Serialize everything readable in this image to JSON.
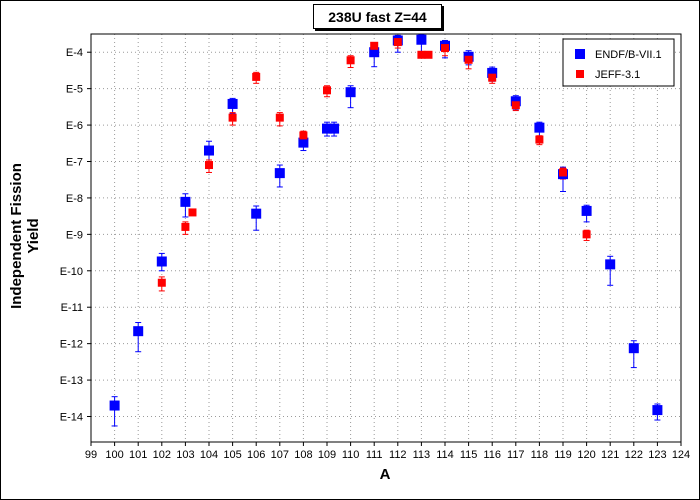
{
  "chart_data": {
    "type": "scatter",
    "title": "238U fast Z=44",
    "xlabel": "A",
    "ylabel": "Independent Fission Yield",
    "xlim": [
      99,
      124
    ],
    "ylim_log10": [
      -14.7,
      -3.5
    ],
    "y_scale": "log",
    "grid": true,
    "legend_position": "top-right",
    "x_ticks": [
      "99",
      "100",
      "101",
      "102",
      "103",
      "104",
      "105",
      "106",
      "107",
      "108",
      "109",
      "110",
      "111",
      "112",
      "113",
      "114",
      "115",
      "116",
      "117",
      "118",
      "119",
      "120",
      "121",
      "122",
      "123",
      "124"
    ],
    "y_ticks": [
      {
        "label": "E-4",
        "value": -4
      },
      {
        "label": "E-5",
        "value": -5
      },
      {
        "label": "E-6",
        "value": -6
      },
      {
        "label": "E-7",
        "value": -7
      },
      {
        "label": "E-8",
        "value": -8
      },
      {
        "label": "E-9",
        "value": -9
      },
      {
        "label": "E-10",
        "value": -10
      },
      {
        "label": "E-11",
        "value": -11
      },
      {
        "label": "E-12",
        "value": -12
      },
      {
        "label": "E-13",
        "value": -13
      },
      {
        "label": "E-14",
        "value": -14
      }
    ],
    "series": [
      {
        "name": "ENDF/B-VII.1",
        "color": "#0000ff",
        "marker": "square",
        "points": [
          {
            "x": 100,
            "y": 2e-14,
            "lo": 5.5e-15,
            "hi": 3.5e-14
          },
          {
            "x": 101,
            "y": 2.2e-12,
            "lo": 6e-13,
            "hi": 3.8e-12
          },
          {
            "x": 102,
            "y": 1.8e-10,
            "lo": 1e-10,
            "hi": 3e-10
          },
          {
            "x": 103,
            "y": 7.8e-09,
            "lo": 3e-09,
            "hi": 1.3e-08
          },
          {
            "x": 104,
            "y": 2e-07,
            "lo": 1.1e-07,
            "hi": 3.6e-07
          },
          {
            "x": 105,
            "y": 3.8e-06,
            "lo": 2.1e-06,
            "hi": 5.4e-06
          },
          {
            "x": 106,
            "y": 3.7e-09,
            "lo": 1.3e-09,
            "hi": 6e-09
          },
          {
            "x": 107,
            "y": 4.8e-08,
            "lo": 2e-08,
            "hi": 8e-08
          },
          {
            "x": 108,
            "y": 3.3e-07,
            "lo": 2e-07,
            "hi": 5.3e-07
          },
          {
            "x": 109,
            "y": 8e-07,
            "lo": 5e-07,
            "hi": 1.2e-06
          },
          {
            "x": 109.3,
            "y": 8e-07,
            "lo": 5e-07,
            "hi": 1.2e-06
          },
          {
            "x": 110,
            "y": 8e-06,
            "lo": 3e-06,
            "hi": 1.2e-05
          },
          {
            "x": 111,
            "y": 0.0001,
            "lo": 4e-05,
            "hi": 0.00014
          },
          {
            "x": 112,
            "y": 0.00021,
            "lo": 0.0001,
            "hi": 0.00029
          },
          {
            "x": 113,
            "y": 0.00022,
            "lo": 0.0001,
            "hi": 0.0003
          },
          {
            "x": 114,
            "y": 0.00015,
            "lo": 7e-05,
            "hi": 0.00021
          },
          {
            "x": 115,
            "y": 7.5e-05,
            "lo": 4.5e-05,
            "hi": 0.00011
          },
          {
            "x": 116,
            "y": 2.7e-05,
            "lo": 1.6e-05,
            "hi": 3.9e-05
          },
          {
            "x": 117,
            "y": 4.5e-06,
            "lo": 2.6e-06,
            "hi": 6.4e-06
          },
          {
            "x": 118,
            "y": 8.5e-07,
            "lo": 4.2e-07,
            "hi": 1.2e-06
          },
          {
            "x": 119,
            "y": 4.5e-08,
            "lo": 1.5e-08,
            "hi": 7e-08
          },
          {
            "x": 120,
            "y": 4.4e-09,
            "lo": 2.2e-09,
            "hi": 6.3e-09
          },
          {
            "x": 121,
            "y": 1.5e-10,
            "lo": 4e-11,
            "hi": 2.5e-10
          },
          {
            "x": 122,
            "y": 7.5e-13,
            "lo": 2.2e-13,
            "hi": 1.2e-12
          },
          {
            "x": 123,
            "y": 1.5e-14,
            "lo": 8e-15,
            "hi": 2.2e-14
          }
        ]
      },
      {
        "name": "JEFF-3.1",
        "color": "#ff0000",
        "marker": "square",
        "points": [
          {
            "x": 102,
            "y": 4.7e-11,
            "lo": 2.8e-11,
            "hi": 6.8e-11
          },
          {
            "x": 103,
            "y": 1.6e-09,
            "lo": 1e-09,
            "hi": 2.2e-09
          },
          {
            "x": 103.3,
            "y": 4e-09
          },
          {
            "x": 104,
            "y": 8e-08,
            "lo": 5e-08,
            "hi": 1.1e-07
          },
          {
            "x": 105,
            "y": 1.6e-06,
            "lo": 1e-06,
            "hi": 2.2e-06
          },
          {
            "x": 106,
            "y": 2.1e-05,
            "lo": 1.4e-05,
            "hi": 2.8e-05
          },
          {
            "x": 107,
            "y": 1.6e-06,
            "lo": 9.5e-07,
            "hi": 2.2e-06
          },
          {
            "x": 108,
            "y": 5.2e-07,
            "lo": 3.6e-07,
            "hi": 6.8e-07
          },
          {
            "x": 109,
            "y": 9e-06,
            "lo": 6e-06,
            "hi": 1.2e-05
          },
          {
            "x": 110,
            "y": 6e-05,
            "lo": 3.8e-05,
            "hi": 8e-05
          },
          {
            "x": 111,
            "y": 0.00015,
            "lo": 0.00011,
            "hi": 0.00018
          },
          {
            "x": 112,
            "y": 0.00019,
            "lo": 0.00013,
            "hi": 0.00025
          },
          {
            "x": 113,
            "y": 8.5e-05
          },
          {
            "x": 113.3,
            "y": 8.5e-05
          },
          {
            "x": 114,
            "y": 0.00013,
            "lo": 8e-05,
            "hi": 0.00017
          },
          {
            "x": 115,
            "y": 6.2e-05,
            "lo": 3.5e-05,
            "hi": 8.5e-05
          },
          {
            "x": 116,
            "y": 2e-05,
            "lo": 1.4e-05,
            "hi": 2.6e-05
          },
          {
            "x": 117,
            "y": 3.5e-06,
            "lo": 2.5e-06,
            "hi": 4.5e-06
          },
          {
            "x": 118,
            "y": 4e-07,
            "lo": 2.9e-07,
            "hi": 5.1e-07
          },
          {
            "x": 119,
            "y": 5e-08,
            "lo": 3.3e-08,
            "hi": 6.6e-08
          },
          {
            "x": 120,
            "y": 1e-09,
            "lo": 6.8e-10,
            "hi": 1.3e-09
          }
        ]
      }
    ]
  }
}
